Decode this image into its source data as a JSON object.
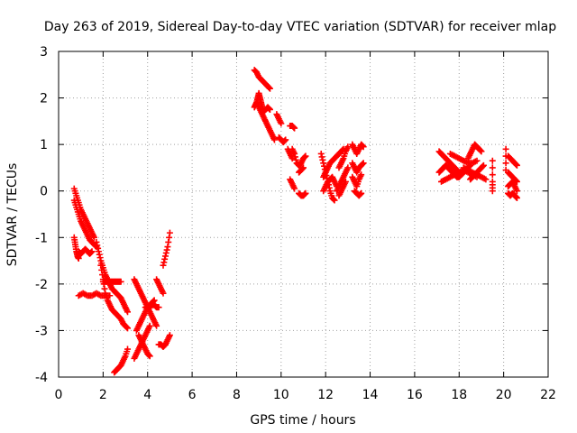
{
  "chart_data": {
    "type": "scatter",
    "title": "Day 263 of 2019, Sidereal Day-to-day VTEC variation (SDTVAR) for receiver mlap",
    "xlabel": "GPS time / hours",
    "ylabel": "SDTVAR / TECUs",
    "xlim": [
      0,
      22
    ],
    "ylim": [
      -4,
      3
    ],
    "xticks": [
      "0",
      "2",
      "4",
      "6",
      "8",
      "10",
      "12",
      "14",
      "16",
      "18",
      "20",
      "22"
    ],
    "yticks": [
      "-4",
      "-3",
      "-2",
      "-1",
      "0",
      "1",
      "2",
      "3"
    ],
    "grid": true,
    "marker": "plus",
    "color": "#ff0000",
    "series": [
      {
        "segments": [
          {
            "x": [
              0.7,
              0.8,
              0.9,
              1.0,
              1.1,
              1.2,
              1.3,
              1.4,
              1.5,
              1.6
            ],
            "y": [
              0.05,
              -0.1,
              -0.25,
              -0.4,
              -0.5,
              -0.6,
              -0.7,
              -0.8,
              -0.9,
              -1.0
            ]
          },
          {
            "x": [
              0.7,
              0.8,
              0.9,
              1.0,
              1.1,
              1.2,
              1.3,
              1.4,
              1.5,
              1.6,
              1.7
            ],
            "y": [
              -0.2,
              -0.35,
              -0.5,
              -0.65,
              -0.75,
              -0.85,
              -0.95,
              -1.05,
              -1.1,
              -1.15,
              -1.2
            ]
          },
          {
            "x": [
              0.7,
              0.75,
              0.8,
              0.85,
              0.9
            ],
            "y": [
              -1.0,
              -1.15,
              -1.3,
              -1.4,
              -1.45
            ]
          },
          {
            "x": [
              0.9,
              1.0,
              1.1,
              1.2,
              1.3,
              1.4,
              1.5
            ],
            "y": [
              -1.3,
              -1.35,
              -1.3,
              -1.25,
              -1.3,
              -1.35,
              -1.3
            ]
          },
          {
            "x": [
              0.9,
              1.1,
              1.3,
              1.5,
              1.7,
              1.9,
              2.1,
              2.3
            ],
            "y": [
              -2.25,
              -2.2,
              -2.25,
              -2.25,
              -2.2,
              -2.25,
              -2.25,
              -2.25
            ]
          },
          {
            "x": [
              1.7,
              1.8,
              1.9,
              2.0,
              2.1,
              2.2,
              2.3,
              2.4,
              2.5,
              2.6,
              2.7,
              2.8,
              2.9,
              3.0,
              3.1
            ],
            "y": [
              -1.1,
              -1.3,
              -1.5,
              -1.65,
              -1.8,
              -1.9,
              -2.0,
              -2.1,
              -2.15,
              -2.2,
              -2.25,
              -2.3,
              -2.4,
              -2.5,
              -2.6
            ]
          },
          {
            "x": [
              1.9,
              2.0,
              2.1,
              2.2,
              2.3,
              2.4,
              2.5,
              2.6,
              2.7,
              2.8,
              2.9,
              3.0,
              3.1
            ],
            "y": [
              -1.6,
              -1.9,
              -2.2,
              -2.35,
              -2.45,
              -2.55,
              -2.6,
              -2.65,
              -2.7,
              -2.75,
              -2.85,
              -2.9,
              -2.95
            ]
          },
          {
            "x": [
              2.0,
              2.1,
              2.2,
              2.3,
              2.4,
              2.5,
              2.6,
              2.7,
              2.8
            ],
            "y": [
              -1.95,
              -1.95,
              -1.95,
              -1.95,
              -1.95,
              -1.95,
              -1.95,
              -1.95,
              -1.95
            ]
          },
          {
            "x": [
              2.5,
              2.6,
              2.7,
              2.8,
              2.9,
              3.0,
              3.1
            ],
            "y": [
              -3.9,
              -3.85,
              -3.8,
              -3.75,
              -3.65,
              -3.55,
              -3.4
            ]
          },
          {
            "x": [
              3.4,
              3.5,
              3.6,
              3.7,
              3.8,
              3.9,
              4.0,
              4.1,
              4.2,
              4.3,
              4.4
            ],
            "y": [
              -1.9,
              -2.0,
              -2.1,
              -2.2,
              -2.3,
              -2.4,
              -2.5,
              -2.6,
              -2.7,
              -2.8,
              -2.9
            ]
          },
          {
            "x": [
              3.4,
              3.5,
              3.6,
              3.7,
              3.8,
              3.9,
              4.0,
              4.1
            ],
            "y": [
              -3.6,
              -3.5,
              -3.4,
              -3.3,
              -3.2,
              -3.1,
              -3.0,
              -2.9
            ]
          },
          {
            "x": [
              3.5,
              3.6,
              3.7,
              3.8,
              3.9,
              4.0,
              4.1,
              4.2,
              4.3
            ],
            "y": [
              -3.0,
              -2.9,
              -2.8,
              -2.7,
              -2.6,
              -2.5,
              -2.45,
              -2.4,
              -2.35
            ]
          },
          {
            "x": [
              3.6,
              3.7,
              3.8,
              3.9,
              4.0,
              4.1
            ],
            "y": [
              -3.1,
              -3.2,
              -3.3,
              -3.4,
              -3.5,
              -3.55
            ]
          },
          {
            "x": [
              3.9,
              4.0,
              4.1,
              4.2,
              4.3,
              4.4,
              4.5
            ],
            "y": [
              -2.5,
              -2.5,
              -2.5,
              -2.45,
              -2.45,
              -2.5,
              -2.5
            ]
          },
          {
            "x": [
              4.4,
              4.5,
              4.6,
              4.7
            ],
            "y": [
              -1.9,
              -2.0,
              -2.1,
              -2.2
            ]
          },
          {
            "x": [
              4.5,
              4.6,
              4.7,
              4.8
            ],
            "y": [
              -3.3,
              -3.3,
              -3.35,
              -3.3
            ]
          },
          {
            "x": [
              4.7,
              4.8,
              4.9,
              5.0
            ],
            "y": [
              -1.6,
              -1.4,
              -1.2,
              -0.9
            ]
          },
          {
            "x": [
              4.8,
              4.9,
              5.0
            ],
            "y": [
              -3.3,
              -3.2,
              -3.1
            ]
          },
          {
            "x": [
              8.8,
              8.9,
              9.0,
              9.1,
              9.2,
              9.3,
              9.4,
              9.5
            ],
            "y": [
              2.6,
              2.55,
              2.45,
              2.4,
              2.35,
              2.3,
              2.25,
              2.2
            ]
          },
          {
            "x": [
              8.8,
              8.85,
              8.9,
              8.95,
              9.0,
              9.05,
              9.1,
              9.15,
              9.2,
              9.3,
              9.4,
              9.5
            ],
            "y": [
              1.8,
              1.85,
              1.9,
              2.0,
              2.1,
              2.0,
              1.9,
              1.8,
              1.7,
              1.75,
              1.8,
              1.75
            ]
          },
          {
            "x": [
              8.9,
              9.0,
              9.1,
              9.2,
              9.3,
              9.4,
              9.5,
              9.6,
              9.7
            ],
            "y": [
              1.9,
              1.8,
              1.7,
              1.6,
              1.5,
              1.4,
              1.3,
              1.2,
              1.1
            ]
          },
          {
            "x": [
              9.8,
              9.9,
              10.0
            ],
            "y": [
              1.65,
              1.55,
              1.45
            ]
          },
          {
            "x": [
              9.9,
              10.0,
              10.1,
              10.2
            ],
            "y": [
              1.15,
              1.1,
              1.05,
              1.1
            ]
          },
          {
            "x": [
              10.4,
              10.5,
              10.6
            ],
            "y": [
              1.4,
              1.4,
              1.35
            ]
          },
          {
            "x": [
              10.3,
              10.4,
              10.5
            ],
            "y": [
              0.9,
              0.8,
              0.7
            ]
          },
          {
            "x": [
              10.5,
              10.6,
              10.7,
              10.8,
              10.9,
              11.0,
              11.1
            ],
            "y": [
              0.9,
              0.8,
              0.6,
              0.55,
              0.6,
              0.7,
              0.75
            ]
          },
          {
            "x": [
              10.8,
              10.9,
              11.0
            ],
            "y": [
              0.4,
              0.45,
              0.5
            ]
          },
          {
            "x": [
              10.4,
              10.5,
              10.6
            ],
            "y": [
              0.25,
              0.15,
              0.05
            ]
          },
          {
            "x": [
              10.8,
              10.9,
              11.0,
              11.1
            ],
            "y": [
              -0.05,
              -0.1,
              -0.1,
              -0.05
            ]
          },
          {
            "x": [
              11.8,
              11.9,
              12.0,
              12.1,
              12.2,
              12.3,
              12.4
            ],
            "y": [
              0.8,
              0.6,
              0.4,
              0.2,
              0.0,
              -0.15,
              -0.2
            ]
          },
          {
            "x": [
              11.9,
              12.0,
              12.1,
              12.2,
              12.3,
              12.4,
              12.5,
              12.6,
              12.7,
              12.8
            ],
            "y": [
              0.3,
              0.4,
              0.5,
              0.6,
              0.65,
              0.7,
              0.75,
              0.8,
              0.85,
              0.9
            ]
          },
          {
            "x": [
              11.9,
              12.0,
              12.1,
              12.2,
              12.3,
              12.4,
              12.5
            ],
            "y": [
              0.0,
              0.1,
              0.2,
              0.25,
              0.3,
              0.2,
              0.1
            ]
          },
          {
            "x": [
              12.5,
              12.6,
              12.7,
              12.8,
              12.9,
              13.0
            ],
            "y": [
              0.0,
              0.1,
              0.2,
              0.3,
              0.4,
              0.5
            ]
          },
          {
            "x": [
              12.6,
              12.7,
              12.8,
              12.9,
              13.0
            ],
            "y": [
              0.5,
              0.6,
              0.7,
              0.85,
              0.95
            ]
          },
          {
            "x": [
              12.6,
              12.7,
              12.8,
              12.9
            ],
            "y": [
              -0.1,
              0.0,
              0.1,
              0.2
            ]
          },
          {
            "x": [
              13.2,
              13.3,
              13.4,
              13.5,
              13.6,
              13.7
            ],
            "y": [
              1.0,
              0.9,
              0.8,
              0.9,
              1.0,
              0.95
            ]
          },
          {
            "x": [
              13.2,
              13.3,
              13.4,
              13.5,
              13.6,
              13.7
            ],
            "y": [
              0.6,
              0.5,
              0.4,
              0.5,
              0.55,
              0.6
            ]
          },
          {
            "x": [
              13.2,
              13.3,
              13.4,
              13.5,
              13.6
            ],
            "y": [
              0.3,
              0.2,
              0.1,
              0.25,
              0.35
            ]
          },
          {
            "x": [
              13.3,
              13.4,
              13.5,
              13.6
            ],
            "y": [
              0.0,
              -0.05,
              -0.1,
              -0.05
            ]
          },
          {
            "x": [
              17.1,
              17.2,
              17.3,
              17.4,
              17.5,
              17.6,
              17.7,
              17.8,
              17.9,
              18.0
            ],
            "y": [
              0.85,
              0.8,
              0.75,
              0.7,
              0.65,
              0.6,
              0.55,
              0.5,
              0.45,
              0.4
            ]
          },
          {
            "x": [
              17.1,
              17.2,
              17.3,
              17.4,
              17.5,
              17.6,
              17.7,
              17.8,
              17.9,
              18.0,
              18.1,
              18.2,
              18.3,
              18.4,
              18.5
            ],
            "y": [
              0.4,
              0.45,
              0.5,
              0.55,
              0.5,
              0.45,
              0.4,
              0.35,
              0.3,
              0.3,
              0.35,
              0.4,
              0.45,
              0.5,
              0.55
            ]
          },
          {
            "x": [
              17.2,
              17.4,
              17.6,
              17.8,
              18.0,
              18.2,
              18.4,
              18.6,
              18.8
            ],
            "y": [
              0.2,
              0.25,
              0.3,
              0.35,
              0.4,
              0.45,
              0.4,
              0.35,
              0.3
            ]
          },
          {
            "x": [
              17.6,
              17.8,
              18.0,
              18.2,
              18.4,
              18.6,
              18.8
            ],
            "y": [
              0.8,
              0.75,
              0.7,
              0.65,
              0.6,
              0.6,
              0.65
            ]
          },
          {
            "x": [
              18.4,
              18.5,
              18.6,
              18.7,
              18.8,
              18.9,
              19.0
            ],
            "y": [
              0.7,
              0.8,
              0.9,
              1.0,
              0.95,
              0.9,
              0.85
            ]
          },
          {
            "x": [
              18.2,
              18.4,
              18.6,
              18.8,
              19.0,
              19.2
            ],
            "y": [
              0.5,
              0.45,
              0.4,
              0.35,
              0.3,
              0.25
            ]
          },
          {
            "x": [
              18.5,
              18.6,
              18.7,
              18.8,
              18.9,
              19.0,
              19.1
            ],
            "y": [
              0.25,
              0.3,
              0.35,
              0.4,
              0.45,
              0.5,
              0.55
            ]
          },
          {
            "x": [
              19.5,
              19.5,
              19.5
            ],
            "y": [
              0.65,
              0.2,
              0.0
            ]
          },
          {
            "x": [
              20.1,
              20.1
            ],
            "y": [
              0.9,
              0.45
            ]
          },
          {
            "x": [
              20.2,
              20.3,
              20.4,
              20.5,
              20.6
            ],
            "y": [
              0.75,
              0.7,
              0.65,
              0.6,
              0.55
            ]
          },
          {
            "x": [
              20.2,
              20.3,
              20.4,
              20.5,
              20.6
            ],
            "y": [
              0.4,
              0.35,
              0.3,
              0.25,
              0.2
            ]
          },
          {
            "x": [
              20.2,
              20.3,
              20.4,
              20.5,
              20.6
            ],
            "y": [
              0.1,
              0.15,
              0.2,
              0.1,
              0.0
            ]
          },
          {
            "x": [
              20.2,
              20.3,
              20.4,
              20.5,
              20.6
            ],
            "y": [
              -0.05,
              -0.1,
              -0.05,
              -0.1,
              -0.15
            ]
          }
        ]
      }
    ]
  }
}
